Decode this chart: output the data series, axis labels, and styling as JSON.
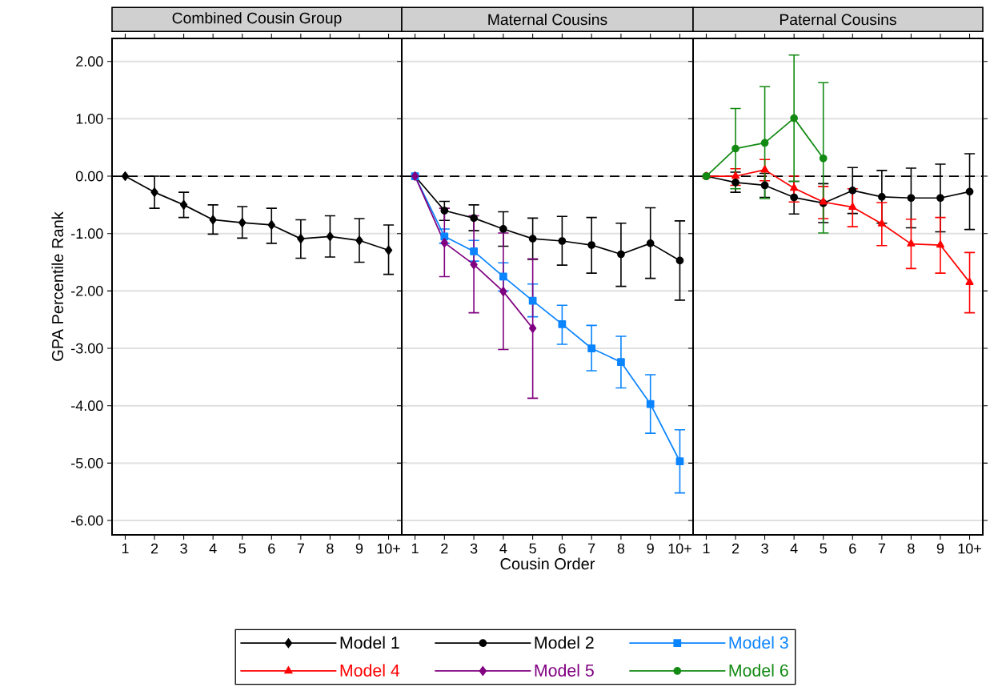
{
  "chart_data": [
    {
      "type": "line",
      "title": "Combined Cousin Group",
      "ylabel": "GPA Percentile Rank",
      "categories": [
        "1",
        "2",
        "3",
        "4",
        "5",
        "6",
        "7",
        "8",
        "9",
        "10+"
      ],
      "ylim": [
        -6.25,
        2.4
      ],
      "yticks": [
        {
          "value": -6,
          "label": "-6.00"
        },
        {
          "value": -5,
          "label": "-5.00"
        },
        {
          "value": -4,
          "label": "-4.00"
        },
        {
          "value": -3,
          "label": "-3.00"
        },
        {
          "value": -2,
          "label": "-2.00"
        },
        {
          "value": -1,
          "label": "-1.00"
        },
        {
          "value": 0,
          "label": "0.00"
        },
        {
          "value": 1,
          "label": "1.00"
        },
        {
          "value": 2,
          "label": "2.00"
        }
      ],
      "grid": "y",
      "ref_lines": [
        {
          "axis": "y",
          "value": 0,
          "line_style": "dashed"
        }
      ],
      "series": [
        {
          "name": "Model 1",
          "color": "#000000",
          "marker": "diamond",
          "values": [
            0,
            -0.28,
            -0.5,
            -0.76,
            -0.81,
            -0.85,
            -1.09,
            -1.05,
            -1.12,
            -1.29
          ],
          "errors": [
            null,
            [
              -0.56,
              0
            ],
            [
              -0.72,
              -0.28
            ],
            [
              -1.01,
              -0.5
            ],
            [
              -1.08,
              -0.53
            ],
            [
              -1.17,
              -0.56
            ],
            [
              -1.43,
              -0.76
            ],
            [
              -1.41,
              -0.69
            ],
            [
              -1.5,
              -0.74
            ],
            [
              -1.71,
              -0.85
            ]
          ]
        }
      ]
    },
    {
      "type": "line",
      "title": "Maternal Cousins",
      "xlabel": "Cousin Order",
      "categories": [
        "1",
        "2",
        "3",
        "4",
        "5",
        "6",
        "7",
        "8",
        "9",
        "10+"
      ],
      "ylim": [
        -6.25,
        2.4
      ],
      "yticks": [
        {
          "value": -6,
          "label": null
        },
        {
          "value": -5,
          "label": null
        },
        {
          "value": -4,
          "label": null
        },
        {
          "value": -3,
          "label": null
        },
        {
          "value": -2,
          "label": null
        },
        {
          "value": -1,
          "label": null
        },
        {
          "value": 0,
          "label": null
        },
        {
          "value": 1,
          "label": null
        },
        {
          "value": 2,
          "label": null
        }
      ],
      "tick_labels": "x",
      "grid": "y",
      "legend": "bottom",
      "ref_lines": [
        {
          "axis": "y",
          "value": 0,
          "line_style": "dashed"
        }
      ],
      "series": [
        {
          "name": "Model 2",
          "color": "#000000",
          "marker": "circle",
          "values": [
            0,
            -0.6,
            -0.73,
            -0.92,
            -1.09,
            -1.13,
            -1.2,
            -1.36,
            -1.17,
            -1.47
          ],
          "errors": [
            null,
            [
              -0.77,
              -0.44
            ],
            [
              -0.95,
              -0.5
            ],
            [
              -1.22,
              -0.62
            ],
            [
              -1.45,
              -0.73
            ],
            [
              -1.55,
              -0.7
            ],
            [
              -1.69,
              -0.72
            ],
            [
              -1.92,
              -0.82
            ],
            [
              -1.78,
              -0.55
            ],
            [
              -2.16,
              -0.78
            ]
          ]
        },
        {
          "name": "Model 3",
          "color": "#0a84ff",
          "marker": "square",
          "values": [
            0,
            -1.05,
            -1.31,
            -1.75,
            -2.17,
            -2.58,
            -3.0,
            -3.24,
            -3.97,
            -4.97
          ],
          "errors": [
            null,
            [
              -1.17,
              -0.92
            ],
            [
              -1.48,
              -1.12
            ],
            [
              -2.0,
              -1.51
            ],
            [
              -2.45,
              -1.88
            ],
            [
              -2.93,
              -2.25
            ],
            [
              -3.39,
              -2.6
            ],
            [
              -3.69,
              -2.79
            ],
            [
              -4.48,
              -3.46
            ],
            [
              -5.52,
              -4.42
            ]
          ]
        },
        {
          "name": "Model 5",
          "color": "#800080",
          "marker": "diamond",
          "values": [
            0,
            -1.16,
            -1.54,
            -2.01,
            -2.65,
            null,
            null,
            null,
            null,
            null
          ],
          "errors": [
            null,
            [
              -1.75,
              -0.56
            ],
            [
              -2.38,
              -0.69
            ],
            [
              -3.02,
              -0.99
            ],
            [
              -3.87,
              -1.44
            ],
            null,
            null,
            null,
            null,
            null
          ]
        }
      ]
    },
    {
      "type": "line",
      "title": "Paternal Cousins",
      "categories": [
        "1",
        "2",
        "3",
        "4",
        "5",
        "6",
        "7",
        "8",
        "9",
        "10+"
      ],
      "ylim": [
        -6.25,
        2.4
      ],
      "yticks": [
        {
          "value": -6,
          "label": null
        },
        {
          "value": -5,
          "label": null
        },
        {
          "value": -4,
          "label": null
        },
        {
          "value": -3,
          "label": null
        },
        {
          "value": -2,
          "label": null
        },
        {
          "value": -1,
          "label": null
        },
        {
          "value": 0,
          "label": null
        },
        {
          "value": 1,
          "label": null
        },
        {
          "value": 2,
          "label": null
        }
      ],
      "tick_labels": "x",
      "grid": "y",
      "ref_lines": [
        {
          "axis": "y",
          "value": 0,
          "line_style": "dashed"
        }
      ],
      "series": [
        {
          "color": "#000000",
          "marker": "circle",
          "values": [
            0,
            -0.11,
            -0.16,
            -0.37,
            -0.47,
            -0.25,
            -0.36,
            -0.38,
            -0.38,
            -0.27
          ],
          "errors": [
            null,
            [
              -0.28,
              0.07
            ],
            [
              -0.37,
              0.05
            ],
            [
              -0.66,
              -0.09
            ],
            [
              -0.81,
              -0.13
            ],
            [
              -0.65,
              0.15
            ],
            [
              -0.82,
              0.1
            ],
            [
              -0.9,
              0.14
            ],
            [
              -0.97,
              0.21
            ],
            [
              -0.93,
              0.39
            ]
          ]
        },
        {
          "name": "Model 4",
          "color": "#ff0000",
          "marker": "triangle",
          "values": [
            0,
            0,
            0.11,
            -0.21,
            -0.45,
            -0.54,
            -0.83,
            -1.18,
            -1.2,
            -1.85
          ],
          "errors": [
            null,
            [
              -0.16,
              0.13
            ],
            [
              -0.08,
              0.29
            ],
            [
              -0.45,
              0.0
            ],
            [
              -0.74,
              -0.18
            ],
            [
              -0.88,
              -0.22
            ],
            [
              -1.21,
              -0.46
            ],
            [
              -1.61,
              -0.75
            ],
            [
              -1.69,
              -0.72
            ],
            [
              -2.38,
              -1.33
            ]
          ]
        },
        {
          "name": "Model 6",
          "color": "#138a13",
          "marker": "circle",
          "values": [
            0,
            0.48,
            0.58,
            1.01,
            0.31,
            null,
            null,
            null,
            null,
            null
          ],
          "errors": [
            null,
            [
              -0.22,
              1.18
            ],
            [
              -0.39,
              1.56
            ],
            [
              -0.09,
              2.11
            ],
            [
              -0.99,
              1.63
            ],
            null,
            null,
            null,
            null,
            null
          ]
        }
      ]
    }
  ]
}
